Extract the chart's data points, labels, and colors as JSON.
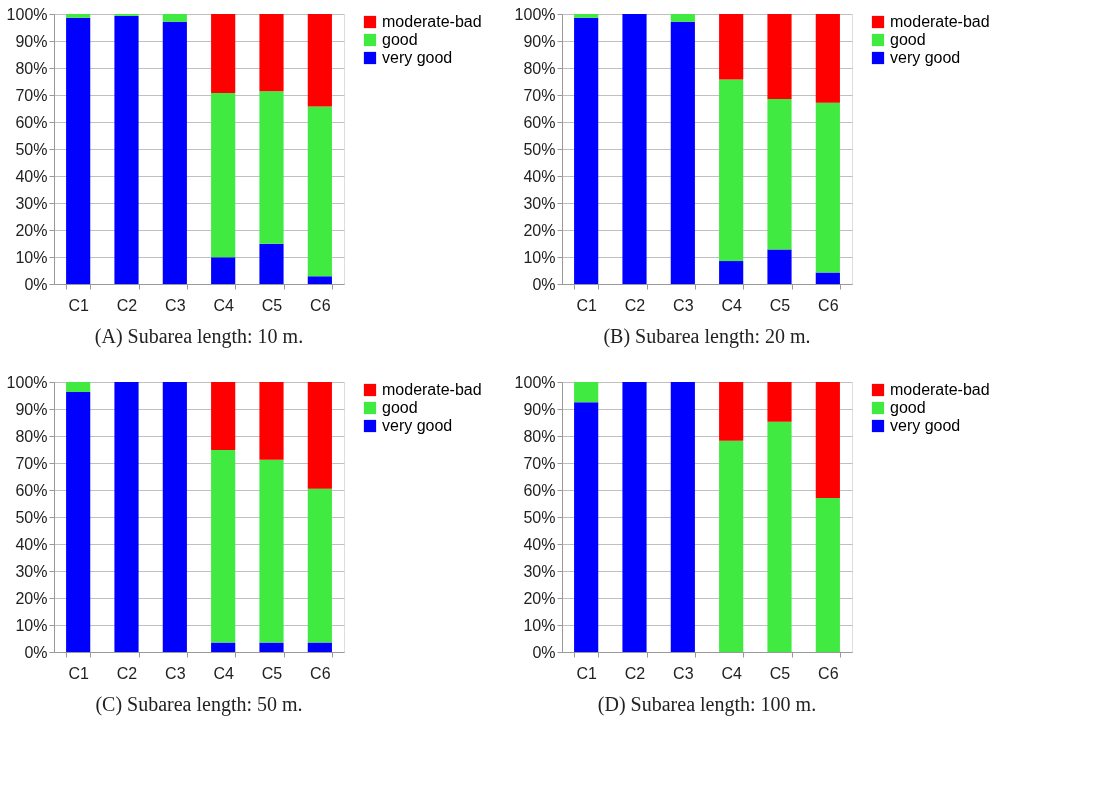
{
  "chart_data": [
    {
      "type": "bar",
      "stacked": true,
      "title": "(A) Subarea length: 10 m.",
      "categories": [
        "C1",
        "C2",
        "C3",
        "C4",
        "C5",
        "C6"
      ],
      "ylim": [
        0,
        100
      ],
      "yticks": [
        {
          "value": 0,
          "label": "0%"
        },
        {
          "value": 10,
          "label": "10%"
        },
        {
          "value": 20,
          "label": "20%"
        },
        {
          "value": 30,
          "label": "30%"
        },
        {
          "value": 40,
          "label": "40%"
        },
        {
          "value": 50,
          "label": "50%"
        },
        {
          "value": 60,
          "label": "60%"
        },
        {
          "value": 70,
          "label": "70%"
        },
        {
          "value": 80,
          "label": "80%"
        },
        {
          "value": 90,
          "label": "90%"
        },
        {
          "value": 100,
          "label": "100%"
        }
      ],
      "grid": "y",
      "legend": "right",
      "series": [
        {
          "name": "very good",
          "color": "#0000ff",
          "values": [
            98.6,
            99.3,
            97.1,
            9.9,
            14.9,
            2.9
          ]
        },
        {
          "name": "good",
          "color": "#40ea40",
          "values": [
            1.4,
            0.7,
            2.9,
            60.8,
            56.5,
            62.8
          ]
        },
        {
          "name": "moderate-bad",
          "color": "#ff0000",
          "values": [
            0,
            0,
            0,
            29.3,
            28.6,
            34.3
          ]
        }
      ]
    },
    {
      "type": "bar",
      "stacked": true,
      "title": "(B) Subarea length: 20 m.",
      "categories": [
        "C1",
        "C2",
        "C3",
        "C4",
        "C5",
        "C6"
      ],
      "ylim": [
        0,
        100
      ],
      "yticks": [
        {
          "value": 0,
          "label": "0%"
        },
        {
          "value": 10,
          "label": "10%"
        },
        {
          "value": 20,
          "label": "20%"
        },
        {
          "value": 30,
          "label": "30%"
        },
        {
          "value": 40,
          "label": "40%"
        },
        {
          "value": 50,
          "label": "50%"
        },
        {
          "value": 60,
          "label": "60%"
        },
        {
          "value": 70,
          "label": "70%"
        },
        {
          "value": 80,
          "label": "80%"
        },
        {
          "value": 90,
          "label": "90%"
        },
        {
          "value": 100,
          "label": "100%"
        }
      ],
      "grid": "y",
      "legend": "right",
      "series": [
        {
          "name": "very good",
          "color": "#0000ff",
          "values": [
            98.6,
            100,
            97.1,
            8.5,
            12.8,
            4.3
          ]
        },
        {
          "name": "good",
          "color": "#40ea40",
          "values": [
            1.4,
            0,
            2.9,
            67.2,
            55.7,
            62.8
          ]
        },
        {
          "name": "moderate-bad",
          "color": "#ff0000",
          "values": [
            0,
            0,
            0,
            24.3,
            31.5,
            32.9
          ]
        }
      ]
    },
    {
      "type": "bar",
      "stacked": true,
      "title": "(C) Subarea length: 50 m.",
      "categories": [
        "C1",
        "C2",
        "C3",
        "C4",
        "C5",
        "C6"
      ],
      "ylim": [
        0,
        100
      ],
      "yticks": [
        {
          "value": 0,
          "label": "0%"
        },
        {
          "value": 10,
          "label": "10%"
        },
        {
          "value": 20,
          "label": "20%"
        },
        {
          "value": 30,
          "label": "30%"
        },
        {
          "value": 40,
          "label": "40%"
        },
        {
          "value": 50,
          "label": "50%"
        },
        {
          "value": 60,
          "label": "60%"
        },
        {
          "value": 70,
          "label": "70%"
        },
        {
          "value": 80,
          "label": "80%"
        },
        {
          "value": 90,
          "label": "90%"
        },
        {
          "value": 100,
          "label": "100%"
        }
      ],
      "grid": "y",
      "legend": "right",
      "series": [
        {
          "name": "very good",
          "color": "#0000ff",
          "values": [
            96.3,
            100,
            100,
            3.5,
            3.5,
            3.5
          ]
        },
        {
          "name": "good",
          "color": "#40ea40",
          "values": [
            3.7,
            0,
            0,
            71.3,
            67.7,
            57
          ]
        },
        {
          "name": "moderate-bad",
          "color": "#ff0000",
          "values": [
            0,
            0,
            0,
            25.2,
            28.8,
            39.5
          ]
        }
      ]
    },
    {
      "type": "bar",
      "stacked": true,
      "title": "(D) Subarea length: 100 m.",
      "categories": [
        "C1",
        "C2",
        "C3",
        "C4",
        "C5",
        "C6"
      ],
      "ylim": [
        0,
        100
      ],
      "yticks": [
        {
          "value": 0,
          "label": "0%"
        },
        {
          "value": 10,
          "label": "10%"
        },
        {
          "value": 20,
          "label": "20%"
        },
        {
          "value": 30,
          "label": "30%"
        },
        {
          "value": 40,
          "label": "40%"
        },
        {
          "value": 50,
          "label": "50%"
        },
        {
          "value": 60,
          "label": "60%"
        },
        {
          "value": 70,
          "label": "70%"
        },
        {
          "value": 80,
          "label": "80%"
        },
        {
          "value": 90,
          "label": "90%"
        },
        {
          "value": 100,
          "label": "100%"
        }
      ],
      "grid": "y",
      "legend": "right",
      "series": [
        {
          "name": "very good",
          "color": "#0000ff",
          "values": [
            92.5,
            100,
            100,
            0,
            0,
            0
          ]
        },
        {
          "name": "good",
          "color": "#40ea40",
          "values": [
            7.5,
            0,
            0,
            78.2,
            85.3,
            57
          ]
        },
        {
          "name": "moderate-bad",
          "color": "#ff0000",
          "values": [
            0,
            0,
            0,
            21.8,
            14.7,
            43
          ]
        }
      ]
    }
  ]
}
